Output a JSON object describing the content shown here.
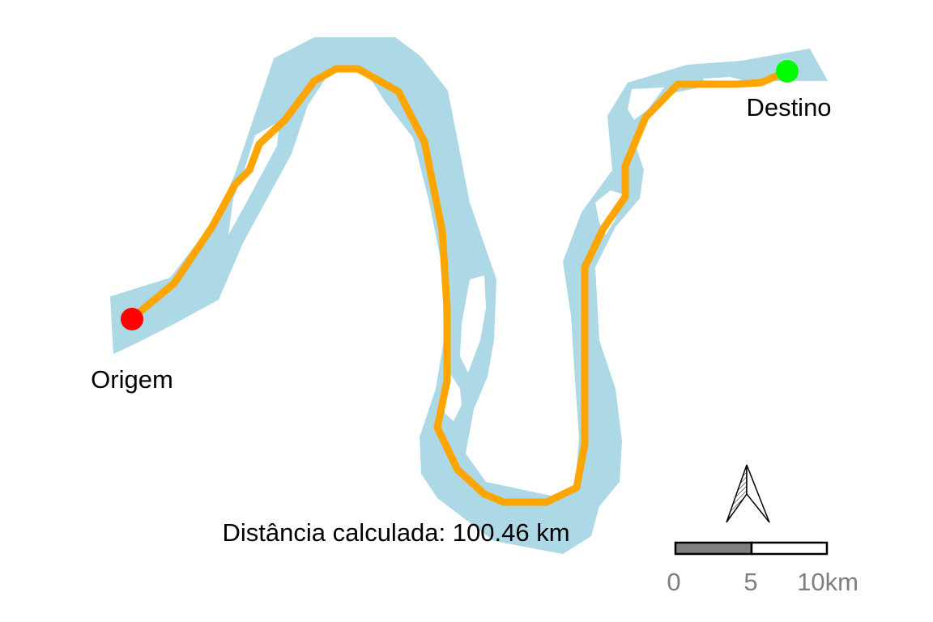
{
  "map": {
    "colors": {
      "water": "#add8e6",
      "route": "#ffa500",
      "origin": "#ff0000",
      "destination": "#00ff00",
      "scalebar_dark": "#7f7f7f",
      "scalebar_light": "#ffffff",
      "scale_text": "#7f7f7f"
    },
    "origin_label": "Origem",
    "destination_label": "Destino",
    "distance_text": "Distância calculada: 100.46 km",
    "north_arrow_icon": "north-arrow-icon",
    "scalebar": {
      "ticks": [
        "0",
        "5",
        "10km"
      ]
    }
  }
}
